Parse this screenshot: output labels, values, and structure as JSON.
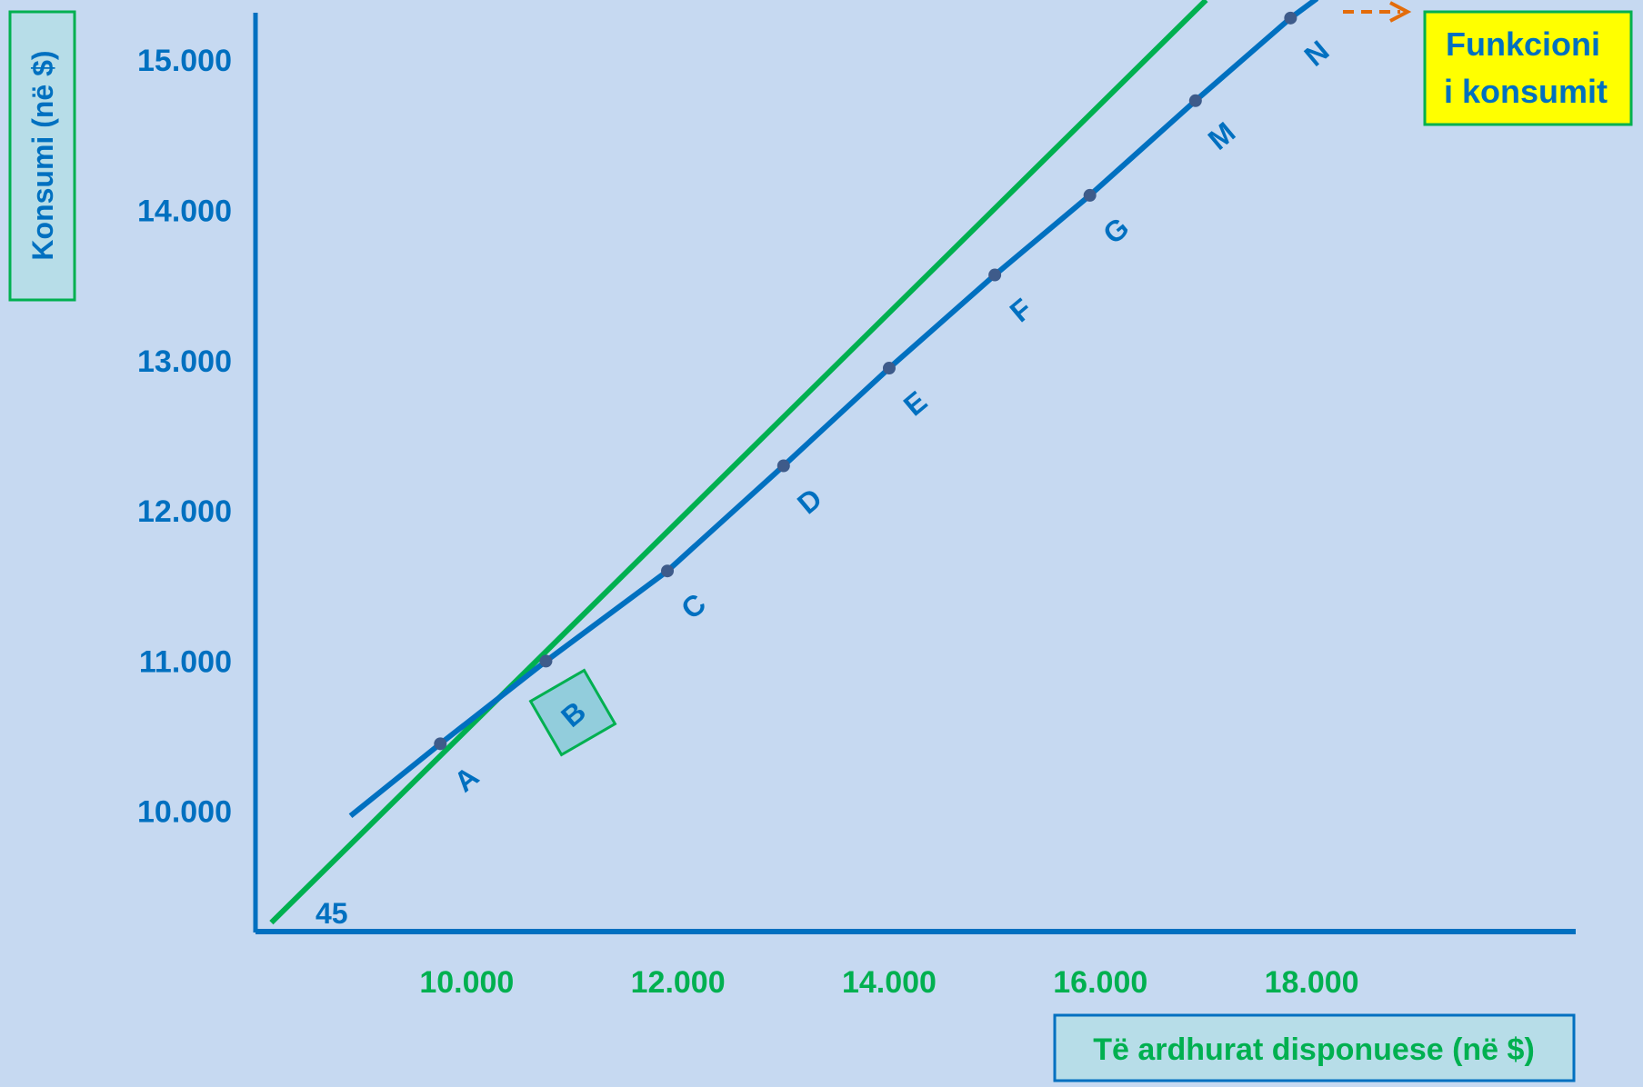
{
  "chart_data": {
    "type": "line",
    "xlabel": "Të ardhurat disponuese (në $)",
    "ylabel": "Konsumi (në $)",
    "x_ticks": [
      "10.000",
      "12.000",
      "14.000",
      "16.000",
      "18.000"
    ],
    "y_ticks": [
      "10.000",
      "11.000",
      "12.000",
      "13.000",
      "14.000",
      "15.000"
    ],
    "xlim": [
      8000,
      20500
    ],
    "ylim": [
      9200,
      15400
    ],
    "angle_label": "45",
    "legend": {
      "text_line1": "Funkcioni",
      "text_line2": "i konsumit",
      "placement": "top-right"
    },
    "series": [
      {
        "name": "Funkcioni i konsumit",
        "color": "#0070c0",
        "points": [
          {
            "label": "A",
            "x": 9750,
            "y": 10450
          },
          {
            "label": "B",
            "x": 10750,
            "y": 11000
          },
          {
            "label": "C",
            "x": 11900,
            "y": 11600
          },
          {
            "label": "D",
            "x": 13000,
            "y": 12300
          },
          {
            "label": "E",
            "x": 14000,
            "y": 12950
          },
          {
            "label": "F",
            "x": 15000,
            "y": 13570
          },
          {
            "label": "G",
            "x": 15900,
            "y": 14100
          },
          {
            "label": "M",
            "x": 16900,
            "y": 14730
          },
          {
            "label": "N",
            "x": 17800,
            "y": 15280
          }
        ]
      },
      {
        "color": "#00b050",
        "points": [
          {
            "x": 8150,
            "y": 9260
          },
          {
            "x": 17000,
            "y": 15400
          }
        ]
      }
    ]
  }
}
